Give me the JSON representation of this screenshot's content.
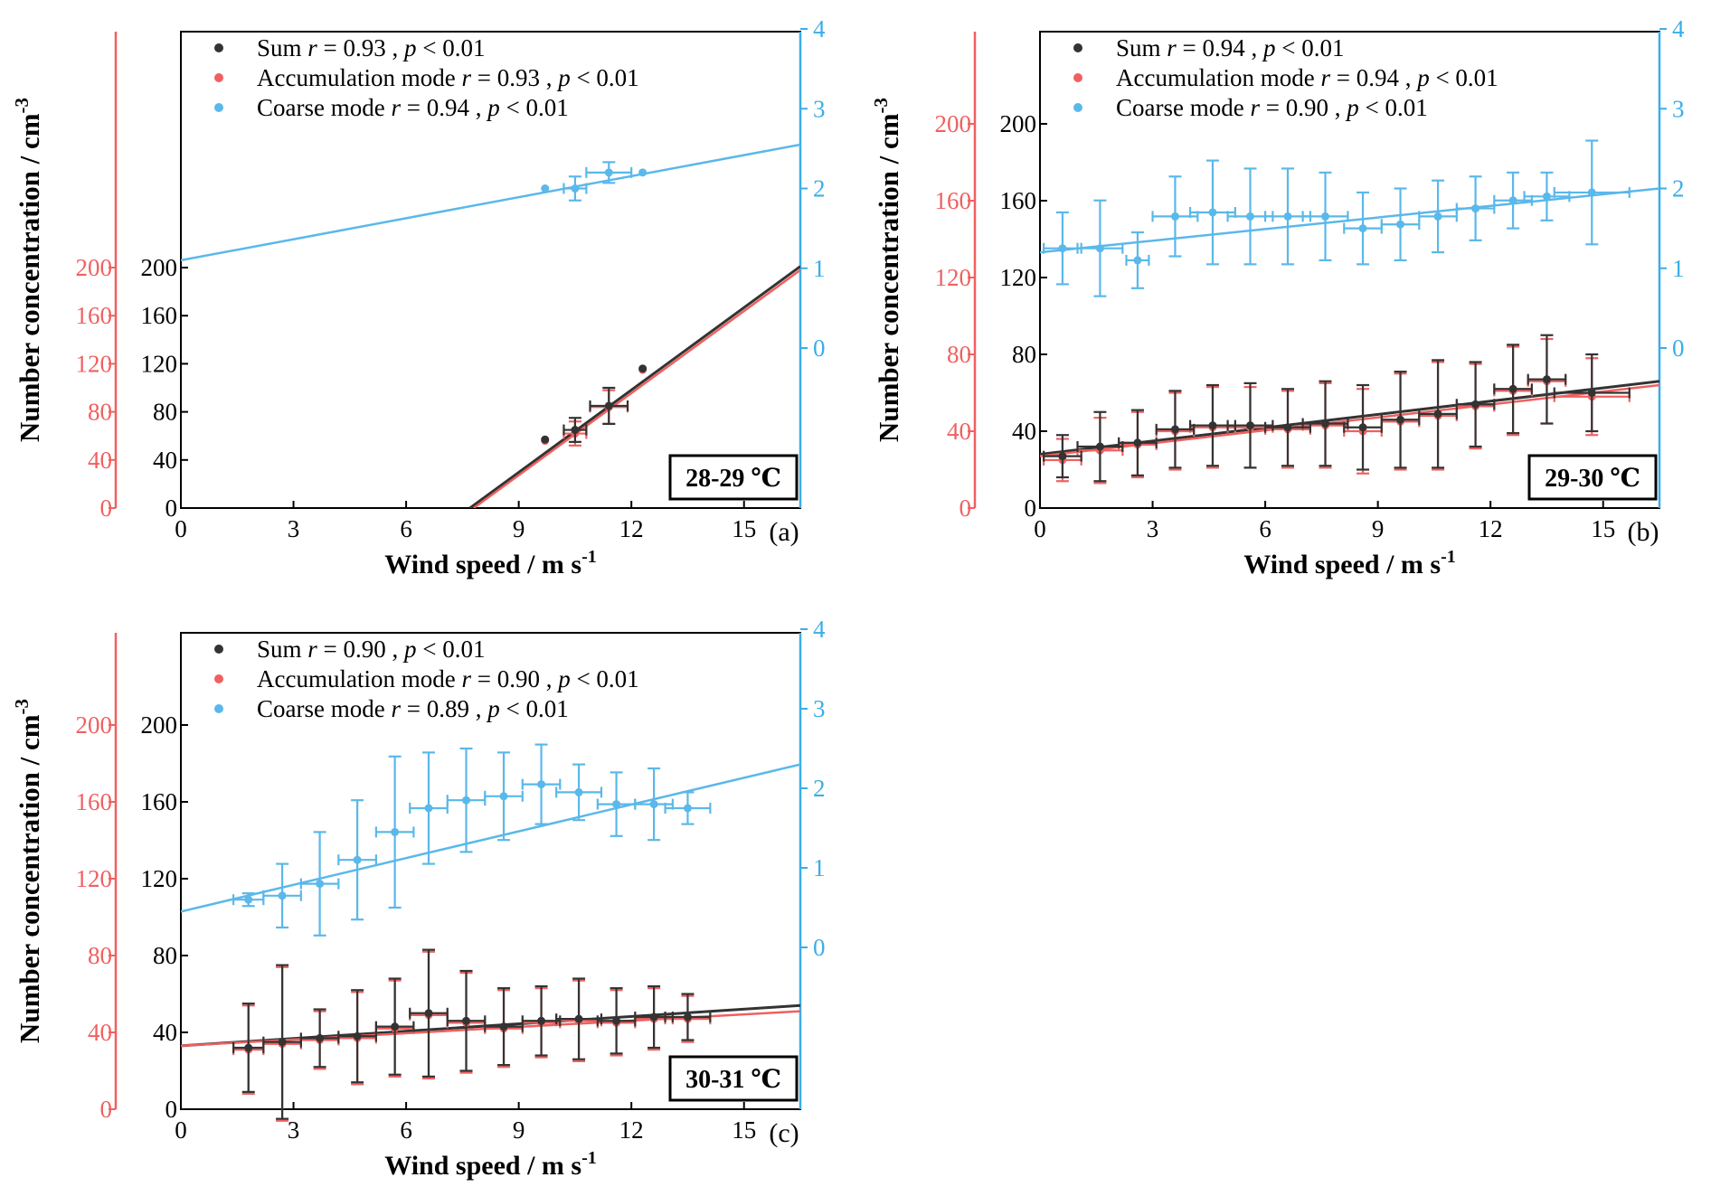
{
  "figure": {
    "colors": {
      "sum": "#333333",
      "accumulation": "#f06060",
      "coarse": "#5ab8ea",
      "left_axis": "#f06060",
      "right_axis": "#3aaee8"
    },
    "common": {
      "ylabel": "Number concentration / cm",
      "ylabel_sup": "-3",
      "xlabel": "Wind speed / m s",
      "xlabel_sup": "-1",
      "legend_entries": [
        {
          "series": "sum",
          "label": "Sum"
        },
        {
          "series": "accumulation",
          "label": "Accumulation mode"
        },
        {
          "series": "coarse",
          "label": "Coarse mode"
        }
      ],
      "r_symbol": "r",
      "p_symbol": "p",
      "p_text": " < 0.01"
    }
  },
  "chart_data": [
    {
      "type": "scatter",
      "panel_label": "(a)",
      "annotation": "28-29 ℃",
      "x_range": [
        0,
        16.5
      ],
      "x_ticks": [
        0,
        3,
        6,
        9,
        12,
        15
      ],
      "left_ticks": [
        0,
        40,
        80,
        120,
        160,
        200
      ],
      "left_range": [
        0,
        500
      ],
      "right_ticks": [
        0,
        1,
        2,
        3,
        4
      ],
      "right_range": [
        -2,
        4
      ],
      "legend_r": [
        "0.93",
        "0.93",
        "0.94"
      ],
      "series": [
        {
          "name": "Sum",
          "key": "sum",
          "axis": "left",
          "points": [
            [
              9.7,
              57,
              0,
              0,
              0,
              0
            ],
            [
              10.5,
              65,
              0.3,
              0.3,
              10,
              10
            ],
            [
              11.4,
              85,
              0.5,
              0.5,
              15,
              15
            ],
            [
              12.3,
              116,
              0,
              0,
              0,
              0
            ]
          ],
          "fit": [
            7.7,
            16.5,
            0,
            201
          ]
        },
        {
          "name": "Accumulation mode",
          "key": "accumulation",
          "axis": "left",
          "points": [
            [
              9.7,
              56,
              0,
              0,
              0,
              0
            ],
            [
              10.5,
              62,
              0.3,
              0.3,
              10,
              10
            ],
            [
              11.4,
              84,
              0.5,
              0.5,
              14,
              14
            ],
            [
              12.3,
              115,
              0,
              0,
              0,
              0
            ]
          ],
          "fit": [
            7.8,
            16.5,
            0,
            198
          ]
        },
        {
          "name": "Coarse mode",
          "key": "coarse",
          "axis": "right",
          "points": [
            [
              9.7,
              2.0,
              0,
              0,
              0,
              0
            ],
            [
              10.5,
              2.0,
              0.3,
              0.3,
              0.15,
              0.15
            ],
            [
              11.4,
              2.2,
              0.6,
              0.6,
              0.13,
              0.13
            ],
            [
              12.3,
              2.2,
              0,
              0,
              0,
              0
            ]
          ],
          "fit": [
            0,
            16.5,
            1.1,
            2.55
          ]
        }
      ]
    },
    {
      "type": "scatter",
      "panel_label": "(b)",
      "annotation": "29-30 ℃",
      "x_range": [
        0,
        16.5
      ],
      "x_ticks": [
        0,
        3,
        6,
        9,
        12,
        15
      ],
      "left_ticks": [
        0,
        40,
        80,
        120,
        160,
        200
      ],
      "left_range": [
        0,
        250
      ],
      "right_ticks": [
        0,
        1,
        2,
        3,
        4
      ],
      "right_range": [
        -2,
        4
      ],
      "legend_r": [
        "0.94",
        "0.94",
        "0.90"
      ],
      "series": [
        {
          "name": "Sum",
          "key": "sum",
          "axis": "left",
          "points": [
            [
              0.6,
              27,
              0.5,
              0.5,
              11,
              11
            ],
            [
              1.6,
              32,
              0.6,
              0.6,
              18,
              18
            ],
            [
              2.6,
              34,
              0.5,
              0.5,
              17,
              17
            ],
            [
              3.6,
              41,
              0.5,
              0.5,
              20,
              20
            ],
            [
              4.6,
              43,
              0.6,
              0.6,
              21,
              21
            ],
            [
              5.6,
              43,
              0.6,
              0.6,
              22,
              22
            ],
            [
              6.6,
              42,
              0.6,
              0.6,
              20,
              20
            ],
            [
              7.6,
              44,
              0.6,
              0.6,
              22,
              22
            ],
            [
              8.6,
              42,
              0.5,
              0.5,
              22,
              22
            ],
            [
              9.6,
              46,
              0.5,
              0.5,
              25,
              25
            ],
            [
              10.6,
              49,
              0.5,
              0.5,
              28,
              28
            ],
            [
              11.6,
              54,
              0.5,
              0.5,
              22,
              22
            ],
            [
              12.6,
              62,
              0.5,
              0.5,
              23,
              23
            ],
            [
              13.5,
              67,
              0.5,
              0.5,
              23,
              23
            ],
            [
              14.7,
              60,
              1.0,
              1.0,
              20,
              20
            ]
          ],
          "fit": [
            0,
            16.5,
            28,
            66
          ]
        },
        {
          "name": "Accumulation mode",
          "key": "accumulation",
          "axis": "left",
          "points": [
            [
              0.6,
              25,
              0.5,
              0.5,
              11,
              11
            ],
            [
              1.6,
              30,
              0.6,
              0.6,
              17,
              17
            ],
            [
              2.6,
              33,
              0.5,
              0.5,
              17,
              17
            ],
            [
              3.6,
              40,
              0.5,
              0.5,
              20,
              20
            ],
            [
              4.6,
              42,
              0.6,
              0.6,
              21,
              21
            ],
            [
              5.6,
              42,
              0.6,
              0.6,
              21,
              21
            ],
            [
              6.6,
              41,
              0.6,
              0.6,
              20,
              20
            ],
            [
              7.6,
              43,
              0.6,
              0.6,
              22,
              22
            ],
            [
              8.6,
              40,
              0.5,
              0.5,
              22,
              22
            ],
            [
              9.6,
              45,
              0.5,
              0.5,
              25,
              25
            ],
            [
              10.6,
              48,
              0.5,
              0.5,
              28,
              28
            ],
            [
              11.6,
              53,
              0.5,
              0.5,
              22,
              22
            ],
            [
              12.6,
              61,
              0.5,
              0.5,
              23,
              23
            ],
            [
              13.5,
              66,
              0.5,
              0.5,
              22,
              22
            ],
            [
              14.7,
              58,
              1.0,
              1.0,
              20,
              20
            ]
          ],
          "fit": [
            0,
            16.5,
            27,
            64
          ]
        },
        {
          "name": "Coarse mode",
          "key": "coarse",
          "axis": "right",
          "points": [
            [
              0.6,
              1.25,
              0.5,
              0.5,
              0.45,
              0.45
            ],
            [
              1.6,
              1.25,
              0.6,
              0.6,
              0.6,
              0.6
            ],
            [
              2.6,
              1.1,
              0.3,
              0.3,
              0.35,
              0.35
            ],
            [
              3.6,
              1.65,
              0.6,
              0.6,
              0.5,
              0.5
            ],
            [
              4.6,
              1.7,
              0.6,
              0.6,
              0.65,
              0.65
            ],
            [
              5.6,
              1.65,
              0.6,
              0.6,
              0.6,
              0.6
            ],
            [
              6.6,
              1.65,
              0.6,
              0.6,
              0.6,
              0.6
            ],
            [
              7.6,
              1.65,
              0.6,
              0.6,
              0.55,
              0.55
            ],
            [
              8.6,
              1.5,
              0.5,
              0.5,
              0.45,
              0.45
            ],
            [
              9.6,
              1.55,
              0.5,
              0.5,
              0.45,
              0.45
            ],
            [
              10.6,
              1.65,
              0.5,
              0.5,
              0.45,
              0.45
            ],
            [
              11.6,
              1.75,
              0.5,
              0.5,
              0.4,
              0.4
            ],
            [
              12.6,
              1.85,
              0.5,
              0.5,
              0.35,
              0.35
            ],
            [
              13.5,
              1.9,
              0.6,
              0.6,
              0.3,
              0.3
            ],
            [
              14.7,
              1.95,
              1.0,
              1.0,
              0.65,
              0.65
            ]
          ],
          "fit": [
            0,
            16.5,
            1.2,
            2.0
          ]
        }
      ]
    },
    {
      "type": "scatter",
      "panel_label": "(c)",
      "annotation": "30-31 ℃",
      "x_range": [
        0,
        16.5
      ],
      "x_ticks": [
        0,
        3,
        6,
        9,
        12,
        15
      ],
      "left_ticks": [
        0,
        40,
        80,
        120,
        160,
        200
      ],
      "left_range": [
        0,
        250
      ],
      "right_ticks": [
        0,
        1,
        2,
        3,
        4
      ],
      "right_range": [
        -2,
        4
      ],
      "legend_r": [
        "0.90",
        "0.90",
        "0.89"
      ],
      "series": [
        {
          "name": "Sum",
          "key": "sum",
          "axis": "left",
          "points": [
            [
              1.8,
              32,
              0.4,
              0.4,
              23,
              23
            ],
            [
              2.7,
              35,
              0.5,
              0.5,
              40,
              40
            ],
            [
              3.7,
              37,
              0.5,
              0.5,
              15,
              15
            ],
            [
              4.7,
              38,
              0.5,
              0.5,
              24,
              24
            ],
            [
              5.7,
              43,
              0.5,
              0.5,
              25,
              25
            ],
            [
              6.6,
              50,
              0.5,
              0.5,
              33,
              33
            ],
            [
              7.6,
              46,
              0.5,
              0.5,
              26,
              26
            ],
            [
              8.6,
              43,
              0.5,
              0.5,
              20,
              20
            ],
            [
              9.6,
              46,
              0.5,
              0.5,
              18,
              18
            ],
            [
              10.6,
              47,
              0.6,
              0.6,
              21,
              21
            ],
            [
              11.6,
              46,
              0.5,
              0.5,
              17,
              17
            ],
            [
              12.6,
              48,
              0.5,
              0.5,
              16,
              16
            ],
            [
              13.5,
              48,
              0.6,
              0.6,
              12,
              12
            ]
          ],
          "fit": [
            0,
            16.5,
            33,
            54
          ]
        },
        {
          "name": "Accumulation mode",
          "key": "accumulation",
          "axis": "left",
          "points": [
            [
              1.8,
              31,
              0.4,
              0.4,
              23,
              23
            ],
            [
              2.7,
              34,
              0.5,
              0.5,
              40,
              40
            ],
            [
              3.7,
              36,
              0.5,
              0.5,
              15,
              15
            ],
            [
              4.7,
              37,
              0.5,
              0.5,
              24,
              24
            ],
            [
              5.7,
              42,
              0.5,
              0.5,
              25,
              25
            ],
            [
              6.6,
              49,
              0.5,
              0.5,
              33,
              33
            ],
            [
              7.6,
              45,
              0.5,
              0.5,
              26,
              26
            ],
            [
              8.6,
              42,
              0.5,
              0.5,
              20,
              20
            ],
            [
              9.6,
              45,
              0.5,
              0.5,
              18,
              18
            ],
            [
              10.6,
              46,
              0.6,
              0.6,
              21,
              21
            ],
            [
              11.6,
              45,
              0.5,
              0.5,
              17,
              17
            ],
            [
              12.6,
              47,
              0.5,
              0.5,
              16,
              16
            ],
            [
              13.5,
              47,
              0.6,
              0.6,
              12,
              12
            ]
          ],
          "fit": [
            0,
            16.5,
            33,
            51
          ]
        },
        {
          "name": "Coarse mode",
          "key": "coarse",
          "axis": "right",
          "points": [
            [
              1.8,
              0.6,
              0.4,
              0.4,
              0.08,
              0.08
            ],
            [
              2.7,
              0.65,
              0.5,
              0.5,
              0.4,
              0.4
            ],
            [
              3.7,
              0.8,
              0.5,
              0.5,
              0.65,
              0.65
            ],
            [
              4.7,
              1.1,
              0.5,
              0.5,
              0.75,
              0.75
            ],
            [
              5.7,
              1.45,
              0.5,
              0.5,
              0.95,
              0.95
            ],
            [
              6.6,
              1.75,
              0.5,
              0.5,
              0.7,
              0.7
            ],
            [
              7.6,
              1.85,
              0.5,
              0.5,
              0.65,
              0.65
            ],
            [
              8.6,
              1.9,
              0.5,
              0.5,
              0.55,
              0.55
            ],
            [
              9.6,
              2.05,
              0.5,
              0.5,
              0.5,
              0.5
            ],
            [
              10.6,
              1.95,
              0.6,
              0.6,
              0.35,
              0.35
            ],
            [
              11.6,
              1.8,
              0.5,
              0.5,
              0.4,
              0.4
            ],
            [
              12.6,
              1.8,
              0.5,
              0.5,
              0.45,
              0.45
            ],
            [
              13.5,
              1.75,
              0.6,
              0.6,
              0.2,
              0.2
            ]
          ],
          "fit": [
            0,
            16.5,
            0.45,
            2.3
          ]
        }
      ]
    }
  ]
}
